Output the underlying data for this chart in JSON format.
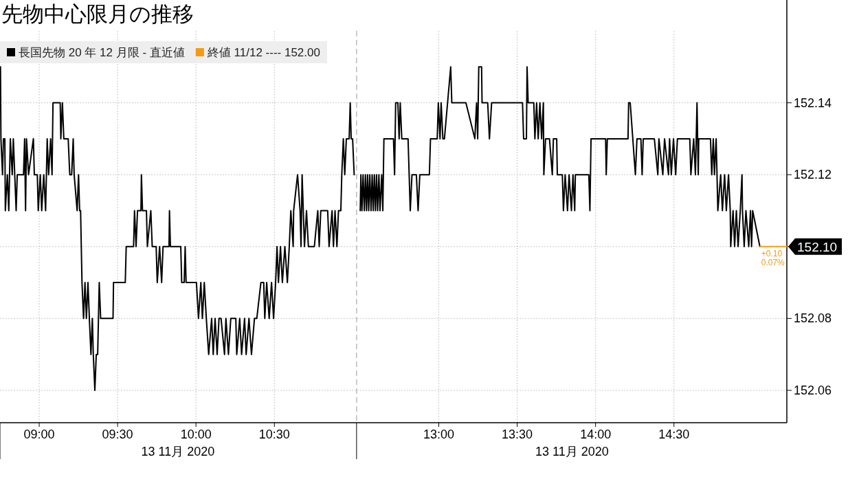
{
  "chart_data": [
    {
      "type": "line",
      "title": "先物中心限月の推移",
      "xlabel": "13 11月 2020",
      "legend": "top left",
      "grid": true,
      "tick_labels": "x",
      "xlim": [
        8.75,
        11.02
      ],
      "xticks": [
        {
          "value": 9,
          "label": "09:00"
        },
        {
          "value": 9.5,
          "label": "09:30"
        },
        {
          "value": 10,
          "label": "10:00"
        },
        {
          "value": 10.5,
          "label": "10:30"
        }
      ],
      "ylim": [
        152.051,
        152.16
      ],
      "yticks": [
        152.06,
        152.08,
        152.1,
        152.12,
        152.14
      ],
      "series": [
        {
          "name": "長国先物 20 年 12 月限 - 直近値",
          "color": "#000000",
          "x": [
            8.753,
            8.756,
            8.766,
            8.772,
            8.781,
            8.784,
            8.797,
            8.806,
            8.816,
            8.828,
            8.835,
            8.844,
            8.853,
            8.86,
            8.9,
            8.907,
            8.913,
            8.919,
            8.932,
            8.963,
            8.969,
            8.988,
            8.994,
            9.007,
            9.016,
            9.029,
            9.041,
            9.051,
            9.06,
            9.073,
            9.082,
            9.088,
            9.134,
            9.138,
            9.148,
            9.157,
            9.185,
            9.195,
            9.207,
            9.217,
            9.223,
            9.242,
            9.251,
            9.258,
            9.264,
            9.273,
            9.283,
            9.292,
            9.301,
            9.311,
            9.32,
            9.33,
            9.339,
            9.345,
            9.355,
            9.364,
            9.373,
            9.383,
            9.392,
            9.471,
            9.474,
            9.549,
            9.555,
            9.602,
            9.608,
            9.618,
            9.627,
            9.649,
            9.652,
            9.659,
            9.684,
            9.69,
            9.712,
            9.721,
            9.746,
            9.753,
            9.768,
            9.781,
            9.79,
            9.828,
            9.831,
            9.837,
            9.903,
            9.909,
            9.925,
            9.931,
            9.937,
            10.003,
            10.016,
            10.031,
            10.041,
            10.053,
            10.066,
            10.081,
            10.1,
            10.11,
            10.122,
            10.135,
            10.147,
            10.16,
            10.182,
            10.191,
            10.207,
            10.222,
            10.254,
            10.26,
            10.279,
            10.291,
            10.31,
            10.32,
            10.338,
            10.354,
            10.373,
            10.388,
            10.414,
            10.432,
            10.439,
            10.451,
            10.467,
            10.482,
            10.495,
            10.508,
            10.517,
            10.526,
            10.539,
            10.551,
            10.567,
            10.583,
            10.595,
            10.605,
            10.62,
            10.623,
            10.648,
            10.664,
            10.67,
            10.677,
            10.692,
            10.705,
            10.717,
            10.755,
            10.777,
            10.786,
            10.796,
            10.84,
            10.849,
            10.868,
            10.877,
            10.887,
            10.899,
            10.909,
            10.924,
            10.93,
            10.94,
            10.949,
            10.959,
            10.977,
            10.984,
            10.99,
            10.999,
            11.009
          ],
          "values": [
            152.15,
            152.13,
            152.12,
            152.13,
            152.13,
            152.11,
            152.12,
            152.11,
            152.13,
            152.12,
            152.13,
            152.12,
            152.11,
            152.12,
            152.12,
            152.13,
            152.11,
            152.13,
            152.12,
            152.13,
            152.12,
            152.12,
            152.11,
            152.12,
            152.11,
            152.12,
            152.11,
            152.13,
            152.12,
            152.13,
            152.12,
            152.14,
            152.14,
            152.13,
            152.14,
            152.13,
            152.13,
            152.12,
            152.12,
            152.13,
            152.12,
            152.11,
            152.12,
            152.11,
            152.11,
            152.09,
            152.08,
            152.09,
            152.08,
            152.09,
            152.08,
            152.07,
            152.08,
            152.07,
            152.06,
            152.07,
            152.07,
            152.09,
            152.08,
            152.08,
            152.09,
            152.09,
            152.1,
            152.1,
            152.11,
            152.1,
            152.11,
            152.11,
            152.12,
            152.11,
            152.11,
            152.1,
            152.11,
            152.1,
            152.1,
            152.09,
            152.1,
            152.09,
            152.1,
            152.1,
            152.11,
            152.1,
            152.1,
            152.09,
            152.09,
            152.1,
            152.09,
            152.09,
            152.08,
            152.09,
            152.08,
            152.09,
            152.08,
            152.07,
            152.08,
            152.07,
            152.08,
            152.07,
            152.08,
            152.08,
            152.07,
            152.08,
            152.07,
            152.08,
            152.08,
            152.07,
            152.08,
            152.07,
            152.08,
            152.07,
            152.08,
            152.07,
            152.08,
            152.08,
            152.09,
            152.09,
            152.08,
            152.09,
            152.08,
            152.09,
            152.08,
            152.09,
            152.1,
            152.09,
            152.1,
            152.09,
            152.1,
            152.09,
            152.1,
            152.11,
            152.1,
            152.11,
            152.12,
            152.11,
            152.1,
            152.12,
            152.1,
            152.11,
            152.1,
            152.1,
            152.11,
            152.1,
            152.11,
            152.11,
            152.1,
            152.11,
            152.1,
            152.11,
            152.1,
            152.11,
            152.11,
            152.12,
            152.13,
            152.12,
            152.13,
            152.13,
            152.14,
            152.13,
            152.13,
            152.12
          ]
        }
      ]
    },
    {
      "type": "line",
      "xlabel": "13 11月 2020",
      "grid": true,
      "xlim": [
        12.48,
        15.22
      ],
      "xticks": [
        {
          "value": 13,
          "label": "13:00"
        },
        {
          "value": 13.5,
          "label": "13:30"
        },
        {
          "value": 14,
          "label": "14:00"
        },
        {
          "value": 14.5,
          "label": "14:30"
        }
      ],
      "ylim": [
        152.051,
        152.16
      ],
      "yticks": [
        152.06,
        152.08,
        {
          "value": 152.1,
          "label": null
        },
        152.12,
        152.14
      ],
      "annotations": [
        "+0.10",
        "0.07%"
      ],
      "series": [
        {
          "color": "#000000",
          "x": [
            12.499,
            12.503,
            12.51,
            12.517,
            12.525,
            12.532,
            12.539,
            12.546,
            12.553,
            12.56,
            12.568,
            12.575,
            12.582,
            12.589,
            12.596,
            12.603,
            12.61,
            12.618,
            12.625,
            12.636,
            12.643,
            12.65,
            12.711,
            12.718,
            12.725,
            12.739,
            12.747,
            12.754,
            12.764,
            12.804,
            12.818,
            12.829,
            12.857,
            12.868,
            12.879,
            12.94,
            12.947,
            12.99,
            12.997,
            13.008,
            13.015,
            13.026,
            13.036,
            13.076,
            13.083,
            13.173,
            13.23,
            13.241,
            13.248,
            13.255,
            13.273,
            13.276,
            13.312,
            13.323,
            13.337,
            13.534,
            13.541,
            13.559,
            13.563,
            13.57,
            13.606,
            13.613,
            13.624,
            13.634,
            13.645,
            13.656,
            13.667,
            13.67,
            13.681,
            13.706,
            13.724,
            13.731,
            13.752,
            13.756,
            13.788,
            13.795,
            13.806,
            13.821,
            13.831,
            13.846,
            13.856,
            13.867,
            13.871,
            13.957,
            13.964,
            13.971,
            14.064,
            14.068,
            14.075,
            14.207,
            14.211,
            14.221,
            14.254,
            14.264,
            14.289,
            14.297,
            14.304,
            14.375,
            14.397,
            14.404,
            14.429,
            14.44,
            14.465,
            14.472,
            14.483,
            14.497,
            14.511,
            14.522,
            14.601,
            14.608,
            14.626,
            14.637,
            14.647,
            14.655,
            14.658,
            14.733,
            14.741,
            14.751,
            14.758,
            14.769,
            14.78,
            14.798,
            14.809,
            14.823,
            14.834,
            14.848,
            14.859,
            14.862,
            14.877,
            14.887,
            14.898,
            14.909,
            14.923,
            14.934,
            14.937,
            14.948,
            14.959,
            14.977,
            14.988,
            14.995,
            15.002,
            15.048
          ],
          "values": [
            152.11,
            152.12,
            152.11,
            152.12,
            152.11,
            152.12,
            152.11,
            152.12,
            152.11,
            152.12,
            152.11,
            152.12,
            152.11,
            152.12,
            152.11,
            152.12,
            152.11,
            152.12,
            152.11,
            152.12,
            152.11,
            152.13,
            152.13,
            152.12,
            152.14,
            152.14,
            152.13,
            152.14,
            152.13,
            152.13,
            152.11,
            152.12,
            152.12,
            152.11,
            152.12,
            152.12,
            152.13,
            152.13,
            152.14,
            152.13,
            152.14,
            152.13,
            152.13,
            152.15,
            152.14,
            152.14,
            152.13,
            152.14,
            152.13,
            152.15,
            152.15,
            152.14,
            152.14,
            152.13,
            152.14,
            152.14,
            152.13,
            152.13,
            152.15,
            152.14,
            152.14,
            152.13,
            152.14,
            152.13,
            152.14,
            152.13,
            152.14,
            152.12,
            152.13,
            152.13,
            152.12,
            152.13,
            152.13,
            152.12,
            152.12,
            152.11,
            152.12,
            152.11,
            152.12,
            152.11,
            152.12,
            152.11,
            152.12,
            152.12,
            152.11,
            152.13,
            152.13,
            152.12,
            152.13,
            152.13,
            152.14,
            152.14,
            152.12,
            152.13,
            152.13,
            152.12,
            152.13,
            152.13,
            152.12,
            152.13,
            152.12,
            152.13,
            152.12,
            152.13,
            152.12,
            152.13,
            152.12,
            152.13,
            152.13,
            152.12,
            152.13,
            152.12,
            152.14,
            152.12,
            152.13,
            152.13,
            152.12,
            152.13,
            152.12,
            152.13,
            152.11,
            152.12,
            152.11,
            152.12,
            152.11,
            152.12,
            152.11,
            152.1,
            152.11,
            152.1,
            152.11,
            152.1,
            152.11,
            152.12,
            152.11,
            152.1,
            152.11,
            152.1,
            152.11,
            152.1,
            152.11,
            152.1
          ]
        },
        {
          "name": "終値 11/12 ---- 152.00",
          "color": "#f39c12",
          "x": [
            15.048,
            15.22
          ],
          "values": [
            152.1,
            152.1
          ],
          "value_labels": [
            null,
            "152.10"
          ]
        }
      ]
    }
  ]
}
